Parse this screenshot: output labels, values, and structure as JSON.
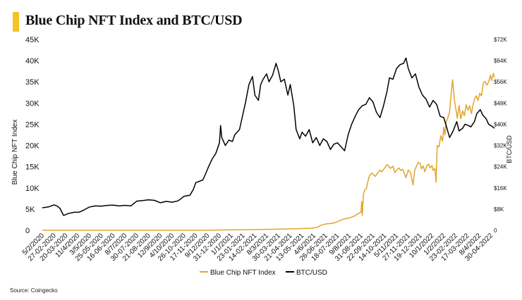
{
  "title": "Blue Chip NFT Index and BTC/USD",
  "source": "Source: Coingecko",
  "chart_data": {
    "type": "line",
    "title": "Blue Chip NFT Index and BTC/USD",
    "ylabel": "Blue Chip NFT Index",
    "y2label": "BTC/USD",
    "ylim": [
      0,
      45000
    ],
    "y2lim": [
      0,
      72000
    ],
    "yticks": [
      "0",
      "5K",
      "10K",
      "15K",
      "20K",
      "25K",
      "30K",
      "35K",
      "40K",
      "45K"
    ],
    "y2ticks": [
      "0",
      "$8K",
      "$16K",
      "$24K",
      "$32K",
      "$40K",
      "$48K",
      "$56K",
      "$64K",
      "$72K"
    ],
    "xlabels": [
      "5/2/2020",
      "27-02-2020",
      "20-03-2020",
      "11/4/2020",
      "3/5/2020",
      "25-05-2020",
      "16-06-2020",
      "8/7/2020",
      "30-07-2020",
      "21-08-2020",
      "12/9/2020",
      "4/10/2020",
      "26-10-2020",
      "17-11-2020",
      "9/12/2020",
      "31-12-2020",
      "1/1/2021",
      "23-01-2021",
      "14-02-2021",
      "8/3/2021",
      "30-03-2021",
      "21-04-2021",
      "13-05-2021",
      "4/6/2021",
      "26-06-2021",
      "18-07-2021",
      "9/8/2021",
      "31-08-2021",
      "22-09-2021",
      "14-10-2021",
      "5/11/2021",
      "27-11-2021",
      "19-12-2021",
      "10/1/2022",
      "1/2/2022",
      "23-02-2022",
      "17-03-2022",
      "8/4/2022",
      "30-04-2022"
    ],
    "legend": {
      "position": "bottom-center"
    },
    "grid": false,
    "series": [
      {
        "name": "Blue Chip NFT Index",
        "color": "#e0a52d",
        "axis": "left",
        "points": [
          [
            0,
            0
          ],
          [
            14,
            0
          ],
          [
            14.5,
            40
          ],
          [
            15,
            60
          ],
          [
            15.3,
            80
          ],
          [
            16,
            100
          ],
          [
            17,
            120
          ],
          [
            17.8,
            150
          ],
          [
            18.5,
            180
          ],
          [
            19.4,
            230
          ],
          [
            20.3,
            280
          ],
          [
            21.3,
            350
          ],
          [
            22,
            420
          ],
          [
            22.8,
            480
          ],
          [
            23.3,
            700
          ],
          [
            23.6,
            1200
          ],
          [
            24,
            1500
          ],
          [
            24.4,
            1600
          ],
          [
            24.8,
            1800
          ],
          [
            25.2,
            2300
          ],
          [
            25.6,
            2700
          ],
          [
            26,
            2900
          ],
          [
            26.4,
            3300
          ],
          [
            26.8,
            4000
          ],
          [
            27,
            4300
          ],
          [
            27.05,
            6800
          ],
          [
            27.1,
            3500
          ],
          [
            27.2,
            8500
          ],
          [
            27.3,
            9500
          ],
          [
            27.45,
            9800
          ],
          [
            27.55,
            11200
          ],
          [
            27.7,
            12800
          ],
          [
            27.9,
            13500
          ],
          [
            28.2,
            12700
          ],
          [
            28.4,
            13500
          ],
          [
            28.6,
            14200
          ],
          [
            28.75,
            13800
          ],
          [
            28.95,
            14500
          ],
          [
            29.2,
            15500
          ],
          [
            29.35,
            15100
          ],
          [
            29.5,
            14600
          ],
          [
            29.7,
            15100
          ],
          [
            29.85,
            13600
          ],
          [
            30.05,
            14300
          ],
          [
            30.2,
            14700
          ],
          [
            30.35,
            14100
          ],
          [
            30.5,
            14400
          ],
          [
            30.6,
            13900
          ],
          [
            30.8,
            12400
          ],
          [
            31,
            14200
          ],
          [
            31.2,
            13500
          ],
          [
            31.4,
            10700
          ],
          [
            31.55,
            14200
          ],
          [
            31.7,
            15200
          ],
          [
            31.85,
            16000
          ],
          [
            32.0,
            15800
          ],
          [
            32.1,
            14500
          ],
          [
            32.25,
            15200
          ],
          [
            32.4,
            13800
          ],
          [
            32.55,
            15100
          ],
          [
            32.7,
            15600
          ],
          [
            32.85,
            14700
          ],
          [
            33.0,
            15300
          ],
          [
            33.1,
            14100
          ],
          [
            33.25,
            14600
          ],
          [
            33.35,
            11300
          ],
          [
            33.45,
            20000
          ],
          [
            33.6,
            19700
          ],
          [
            33.75,
            22300
          ],
          [
            33.9,
            21000
          ],
          [
            34.0,
            24300
          ],
          [
            34.1,
            22500
          ],
          [
            34.2,
            25500
          ],
          [
            34.35,
            26500
          ],
          [
            34.5,
            28000
          ],
          [
            34.6,
            31400
          ],
          [
            34.75,
            35500
          ],
          [
            34.9,
            30800
          ],
          [
            35.05,
            28200
          ],
          [
            35.15,
            26400
          ],
          [
            35.3,
            29400
          ],
          [
            35.45,
            26300
          ],
          [
            35.6,
            28200
          ],
          [
            35.75,
            27000
          ],
          [
            35.9,
            29600
          ],
          [
            36.05,
            28300
          ],
          [
            36.2,
            29400
          ],
          [
            36.35,
            27500
          ],
          [
            36.45,
            29200
          ],
          [
            36.6,
            30900
          ],
          [
            36.75,
            31700
          ],
          [
            36.9,
            30600
          ],
          [
            37.05,
            32300
          ],
          [
            37.2,
            31700
          ],
          [
            37.35,
            34700
          ],
          [
            37.5,
            35100
          ],
          [
            37.65,
            34200
          ],
          [
            37.8,
            35000
          ],
          [
            37.95,
            36600
          ],
          [
            38.05,
            35300
          ],
          [
            38.2,
            37000
          ],
          [
            38.3,
            36000
          ]
        ]
      },
      {
        "name": "BTC/USD",
        "color": "#000000",
        "axis": "right",
        "points": [
          [
            0,
            8500
          ],
          [
            0.5,
            8800
          ],
          [
            1,
            9600
          ],
          [
            1.3,
            9000
          ],
          [
            1.5,
            8200
          ],
          [
            1.8,
            5600
          ],
          [
            2.2,
            6300
          ],
          [
            2.7,
            6800
          ],
          [
            3.1,
            6800
          ],
          [
            3.5,
            7600
          ],
          [
            4,
            8800
          ],
          [
            4.5,
            9200
          ],
          [
            5,
            9100
          ],
          [
            5.5,
            9400
          ],
          [
            6,
            9500
          ],
          [
            6.5,
            9200
          ],
          [
            7,
            9400
          ],
          [
            7.5,
            9200
          ],
          [
            8,
            11000
          ],
          [
            8.5,
            11200
          ],
          [
            9,
            11500
          ],
          [
            9.5,
            11300
          ],
          [
            10,
            10400
          ],
          [
            10.5,
            10900
          ],
          [
            11,
            10600
          ],
          [
            11.5,
            11100
          ],
          [
            12,
            12800
          ],
          [
            12.5,
            13200
          ],
          [
            12.8,
            15500
          ],
          [
            13,
            18000
          ],
          [
            13.3,
            18500
          ],
          [
            13.6,
            19000
          ],
          [
            13.8,
            21000
          ],
          [
            14.1,
            24200
          ],
          [
            14.4,
            27000
          ],
          [
            14.7,
            29000
          ],
          [
            15,
            33000
          ],
          [
            15.1,
            39500
          ],
          [
            15.2,
            35000
          ],
          [
            15.5,
            32000
          ],
          [
            15.8,
            34000
          ],
          [
            16.1,
            33500
          ],
          [
            16.3,
            36000
          ],
          [
            16.7,
            38000
          ],
          [
            17,
            44000
          ],
          [
            17.2,
            48000
          ],
          [
            17.5,
            55000
          ],
          [
            17.8,
            58000
          ],
          [
            18,
            51000
          ],
          [
            18.3,
            49000
          ],
          [
            18.5,
            55000
          ],
          [
            18.7,
            57000
          ],
          [
            19,
            59000
          ],
          [
            19.2,
            56000
          ],
          [
            19.5,
            58500
          ],
          [
            19.8,
            63000
          ],
          [
            20,
            60000
          ],
          [
            20.2,
            56000
          ],
          [
            20.5,
            57000
          ],
          [
            20.8,
            51000
          ],
          [
            21,
            55000
          ],
          [
            21.3,
            47000
          ],
          [
            21.5,
            38000
          ],
          [
            21.8,
            34500
          ],
          [
            22,
            37000
          ],
          [
            22.3,
            35500
          ],
          [
            22.6,
            38000
          ],
          [
            22.9,
            33000
          ],
          [
            23.2,
            35000
          ],
          [
            23.5,
            32000
          ],
          [
            23.8,
            34500
          ],
          [
            24.1,
            33500
          ],
          [
            24.4,
            30500
          ],
          [
            24.7,
            32500
          ],
          [
            25,
            33000
          ],
          [
            25.3,
            31500
          ],
          [
            25.6,
            30000
          ],
          [
            25.9,
            36000
          ],
          [
            26.2,
            40000
          ],
          [
            26.5,
            43000
          ],
          [
            26.8,
            45500
          ],
          [
            27.1,
            47000
          ],
          [
            27.4,
            47500
          ],
          [
            27.7,
            50000
          ],
          [
            28,
            48500
          ],
          [
            28.3,
            44500
          ],
          [
            28.6,
            42500
          ],
          [
            28.9,
            47000
          ],
          [
            29.2,
            52500
          ],
          [
            29.4,
            57500
          ],
          [
            29.7,
            57000
          ],
          [
            30,
            61000
          ],
          [
            30.3,
            62500
          ],
          [
            30.6,
            63000
          ],
          [
            30.8,
            65000
          ],
          [
            31,
            61000
          ],
          [
            31.3,
            57500
          ],
          [
            31.6,
            59000
          ],
          [
            31.9,
            54000
          ],
          [
            32.2,
            51000
          ],
          [
            32.5,
            49500
          ],
          [
            32.8,
            46500
          ],
          [
            33.1,
            49000
          ],
          [
            33.4,
            47500
          ],
          [
            33.7,
            43000
          ],
          [
            34,
            42500
          ],
          [
            34.3,
            38000
          ],
          [
            34.5,
            35000
          ],
          [
            34.8,
            37500
          ],
          [
            35.1,
            41000
          ],
          [
            35.3,
            37500
          ],
          [
            35.6,
            38500
          ],
          [
            35.8,
            40000
          ],
          [
            36.1,
            39500
          ],
          [
            36.3,
            39000
          ],
          [
            36.6,
            41000
          ],
          [
            36.8,
            44000
          ],
          [
            37.1,
            45500
          ],
          [
            37.3,
            43500
          ],
          [
            37.6,
            42000
          ],
          [
            37.8,
            40000
          ],
          [
            38,
            39500
          ],
          [
            38.3,
            38500
          ]
        ]
      }
    ]
  }
}
